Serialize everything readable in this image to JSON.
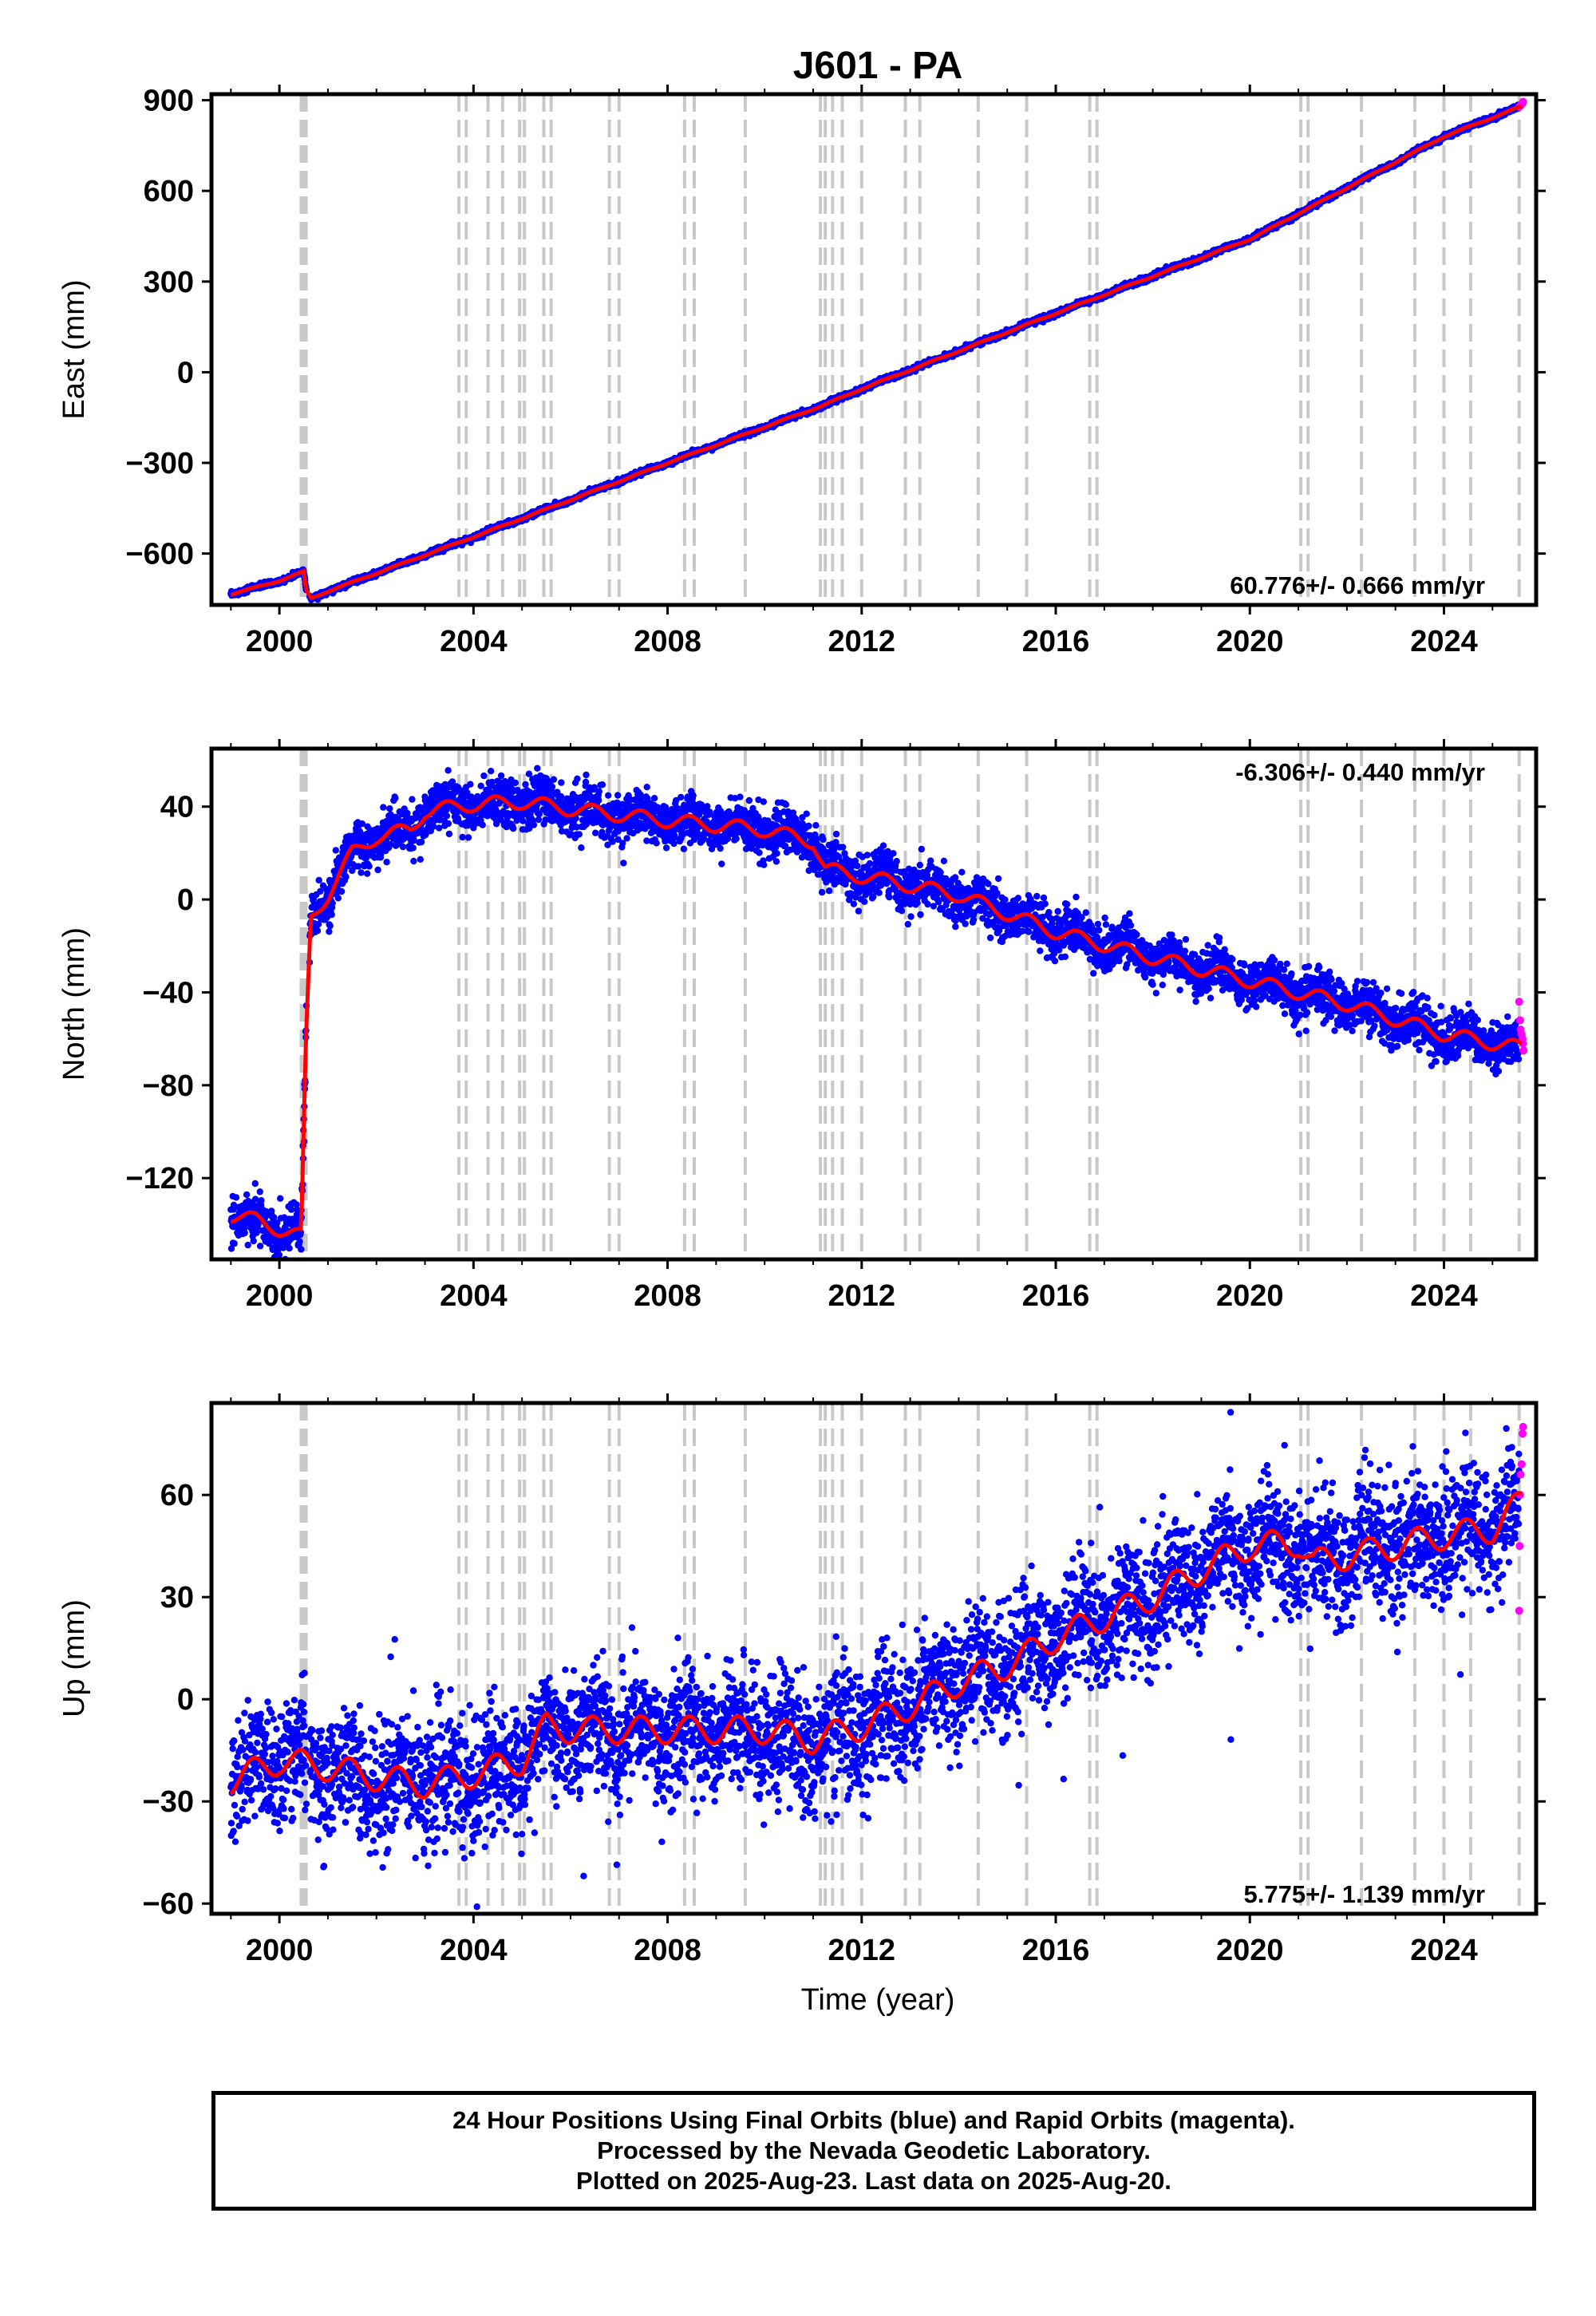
{
  "title": "J601 - PA",
  "xlabel": "Time (year)",
  "colors": {
    "final": "#0000ff",
    "rapid": "#ff00ff",
    "model": "#ff0000",
    "steps": "#c8c8c8"
  },
  "chart_data": [
    {
      "type": "scatter",
      "panel": "east",
      "ylabel": "East (mm)",
      "xlim": [
        1998.6,
        2025.9
      ],
      "ylim": [
        -770,
        920
      ],
      "xticks": [
        2000,
        2004,
        2008,
        2012,
        2016,
        2020,
        2024
      ],
      "yticks": [
        -600,
        -300,
        0,
        300,
        600,
        900
      ],
      "ytick_labels": [
        "−600",
        "−300",
        "0",
        "300",
        "600",
        "900"
      ],
      "rate_label": "60.776+/- 0.666 mm/yr",
      "rate_label_position": "bottom-right",
      "noise": 4,
      "trend": [
        [
          1999.0,
          -735
        ],
        [
          2000.0,
          -690
        ],
        [
          2000.5,
          -660
        ],
        [
          2000.55,
          -720
        ],
        [
          2000.65,
          -748
        ],
        [
          2001.0,
          -725
        ],
        [
          2004.0,
          -545
        ],
        [
          2008.0,
          -300
        ],
        [
          2011.2,
          -110
        ],
        [
          2012.0,
          -55
        ],
        [
          2016.0,
          195
        ],
        [
          2020.0,
          440
        ],
        [
          2024.0,
          780
        ],
        [
          2025.6,
          880
        ]
      ],
      "rapid_points": [
        [
          2025.55,
          878
        ],
        [
          2025.58,
          882
        ],
        [
          2025.6,
          886
        ],
        [
          2025.62,
          890
        ],
        [
          2025.63,
          895
        ]
      ]
    },
    {
      "type": "scatter",
      "panel": "north",
      "ylabel": "North (mm)",
      "xlim": [
        1998.6,
        2025.9
      ],
      "ylim": [
        -155,
        65
      ],
      "xticks": [
        2000,
        2004,
        2008,
        2012,
        2016,
        2020,
        2024
      ],
      "yticks": [
        -120,
        -80,
        -40,
        0,
        40
      ],
      "ytick_labels": [
        "−120",
        "−80",
        "−40",
        "0",
        "40"
      ],
      "rate_label": "-6.306+/- 0.440 mm/yr",
      "rate_label_position": "top-right",
      "noise": 5,
      "trend": [
        [
          1999.0,
          -136
        ],
        [
          1999.5,
          -138
        ],
        [
          2000.0,
          -142
        ],
        [
          2000.45,
          -145
        ],
        [
          2000.55,
          -60
        ],
        [
          2000.65,
          -8
        ],
        [
          2001.0,
          2
        ],
        [
          2001.5,
          20
        ],
        [
          2002.0,
          27
        ],
        [
          2002.7,
          30
        ],
        [
          2003.0,
          38
        ],
        [
          2004.0,
          41
        ],
        [
          2005.0,
          42
        ],
        [
          2006.0,
          39
        ],
        [
          2008.0,
          34
        ],
        [
          2010.0,
          30
        ],
        [
          2011.0,
          25
        ],
        [
          2011.25,
          13
        ],
        [
          2012.0,
          10
        ],
        [
          2014.0,
          2
        ],
        [
          2016.0,
          -14
        ],
        [
          2018.0,
          -25
        ],
        [
          2020.0,
          -35
        ],
        [
          2022.0,
          -45
        ],
        [
          2024.0,
          -58
        ],
        [
          2025.6,
          -64
        ]
      ],
      "rapid_points": [
        [
          2025.55,
          -44
        ],
        [
          2025.57,
          -52
        ],
        [
          2025.58,
          -56
        ],
        [
          2025.6,
          -58
        ],
        [
          2025.62,
          -60
        ],
        [
          2025.63,
          -62
        ],
        [
          2025.64,
          -65
        ]
      ]
    },
    {
      "type": "scatter",
      "panel": "up",
      "ylabel": "Up (mm)",
      "xlim": [
        1998.6,
        2025.9
      ],
      "ylim": [
        -63,
        87
      ],
      "xticks": [
        2000,
        2004,
        2008,
        2012,
        2016,
        2020,
        2024
      ],
      "xtick_labels": [
        "2000",
        "2004",
        "2008",
        "2012",
        "2016",
        "2020",
        "2024"
      ],
      "yticks": [
        -60,
        -30,
        0,
        30,
        60
      ],
      "ytick_labels": [
        "−60",
        "−30",
        "0",
        "30",
        "60"
      ],
      "rate_label": "5.775+/- 1.139 mm/yr",
      "rate_label_position": "bottom-right",
      "noise": 9,
      "trend": [
        [
          1999.0,
          -24
        ],
        [
          2000.0,
          -18
        ],
        [
          2001.0,
          -20
        ],
        [
          2002.0,
          -23
        ],
        [
          2003.0,
          -25
        ],
        [
          2004.0,
          -22
        ],
        [
          2005.0,
          -18
        ],
        [
          2005.5,
          -8
        ],
        [
          2006.0,
          -9
        ],
        [
          2008.0,
          -9
        ],
        [
          2010.0,
          -9
        ],
        [
          2011.0,
          -12
        ],
        [
          2012.0,
          -8
        ],
        [
          2013.0,
          -2
        ],
        [
          2014.0,
          5
        ],
        [
          2015.0,
          10
        ],
        [
          2016.0,
          18
        ],
        [
          2017.0,
          24
        ],
        [
          2018.0,
          30
        ],
        [
          2019.0,
          38
        ],
        [
          2020.0,
          45
        ],
        [
          2021.0,
          46
        ],
        [
          2021.3,
          40
        ],
        [
          2022.0,
          42
        ],
        [
          2023.0,
          45
        ],
        [
          2024.0,
          48
        ],
        [
          2025.0,
          50
        ],
        [
          2025.6,
          58
        ]
      ],
      "rapid_points": [
        [
          2025.55,
          26
        ],
        [
          2025.56,
          45
        ],
        [
          2025.57,
          60
        ],
        [
          2025.58,
          66
        ],
        [
          2025.6,
          69
        ],
        [
          2025.62,
          78
        ],
        [
          2025.63,
          80
        ]
      ]
    }
  ],
  "step_lines": [
    2000.45,
    2000.5,
    2000.55,
    2003.7,
    2003.85,
    2004.3,
    2004.6,
    2004.95,
    2005.05,
    2005.45,
    2005.6,
    2006.8,
    2007.0,
    2008.35,
    2008.55,
    2009.6,
    2011.15,
    2011.25,
    2011.4,
    2011.6,
    2012.0,
    2012.9,
    2013.2,
    2014.4,
    2015.4,
    2016.7,
    2016.85,
    2021.05,
    2021.2,
    2022.3,
    2023.4,
    2024.0,
    2024.55,
    2025.55
  ],
  "footer": {
    "line1": "24 Hour Positions Using Final Orbits (blue) and Rapid Orbits (magenta).",
    "line2": "Processed by the Nevada Geodetic Laboratory.",
    "line3": "Plotted on 2025-Aug-23. Last data on 2025-Aug-20."
  }
}
